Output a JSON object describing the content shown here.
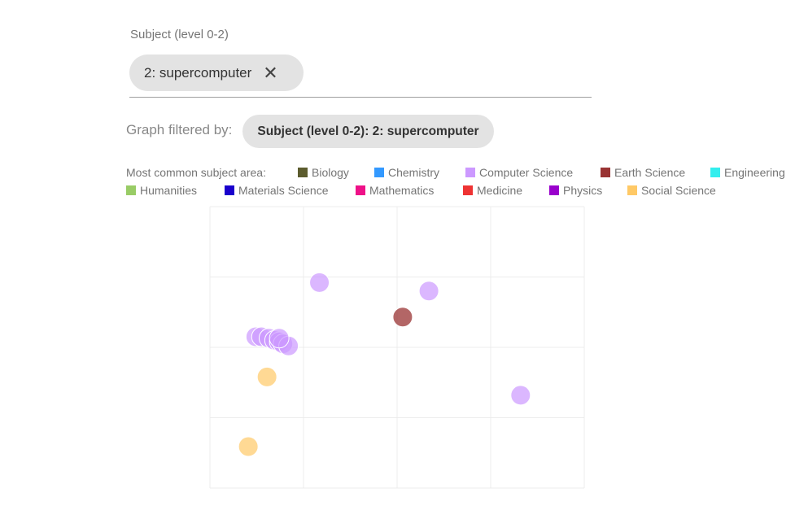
{
  "filter_field": {
    "label": "Subject (level 0-2)",
    "chip_text": "2: supercomputer",
    "close_glyph": "✕",
    "close_icon": "close-icon"
  },
  "graph_filter": {
    "label": "Graph filtered by:",
    "chip_text": "Subject (level 0-2): 2: supercomputer"
  },
  "legend": {
    "title": "Most common subject area:",
    "items": [
      {
        "label": "Biology",
        "color": "#5c5c2e"
      },
      {
        "label": "Chemistry",
        "color": "#3399ff"
      },
      {
        "label": "Computer Science",
        "color": "#cc99ff"
      },
      {
        "label": "Earth Science",
        "color": "#993333"
      },
      {
        "label": "Engineering",
        "color": "#33eeee"
      },
      {
        "label": "Humanities",
        "color": "#99cc66"
      },
      {
        "label": "Materials Science",
        "color": "#1a00cc"
      },
      {
        "label": "Mathematics",
        "color": "#ee1188"
      },
      {
        "label": "Medicine",
        "color": "#ee3333"
      },
      {
        "label": "Physics",
        "color": "#9900cc"
      },
      {
        "label": "Social Science",
        "color": "#ffc966"
      }
    ]
  },
  "chart_data": {
    "type": "scatter",
    "xlim": [
      0,
      4
    ],
    "ylim": [
      0,
      4
    ],
    "grid": true,
    "points": [
      {
        "x": 1.17,
        "y": 2.92,
        "category": "Computer Science"
      },
      {
        "x": 2.34,
        "y": 2.8,
        "category": "Computer Science"
      },
      {
        "x": 2.06,
        "y": 2.43,
        "category": "Earth Science"
      },
      {
        "x": 3.32,
        "y": 1.32,
        "category": "Computer Science"
      },
      {
        "x": 0.49,
        "y": 2.15,
        "category": "Computer Science"
      },
      {
        "x": 0.55,
        "y": 2.15,
        "category": "Computer Science"
      },
      {
        "x": 0.63,
        "y": 2.13,
        "category": "Computer Science"
      },
      {
        "x": 0.69,
        "y": 2.1,
        "category": "Computer Science"
      },
      {
        "x": 0.74,
        "y": 2.08,
        "category": "Computer Science"
      },
      {
        "x": 0.78,
        "y": 2.05,
        "category": "Computer Science"
      },
      {
        "x": 0.84,
        "y": 2.02,
        "category": "Computer Science"
      },
      {
        "x": 0.74,
        "y": 2.13,
        "category": "Computer Science"
      },
      {
        "x": 0.61,
        "y": 1.58,
        "category": "Social Science"
      },
      {
        "x": 0.41,
        "y": 0.59,
        "category": "Social Science"
      }
    ]
  }
}
